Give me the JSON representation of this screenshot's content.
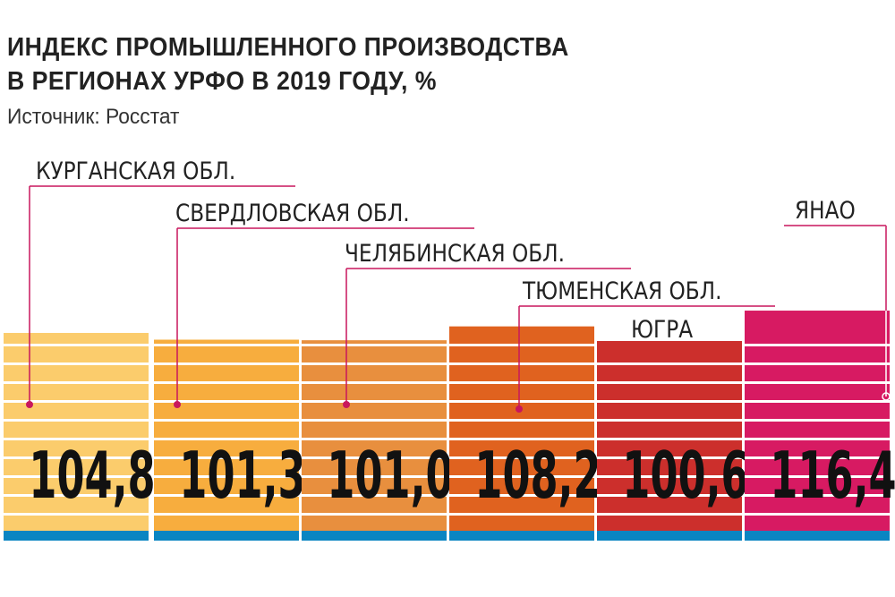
{
  "title_line1": "ИНДЕКС ПРОМЫШЛЕННОГО ПРОИЗВОДСТВА",
  "title_line2": "В РЕГИОНАХ УРФО В 2019 ГОДУ, %",
  "source": "Источник: Росстат",
  "chart_data": {
    "type": "bar",
    "title": "ИНДЕКС ПРОМЫШЛЕННОГО ПРОИЗВОДСТВА В РЕГИОНАХ УРФО В 2019 ГОДУ, %",
    "categories": [
      "КУРГАНСКАЯ ОБЛ.",
      "СВЕРДЛОВСКАЯ ОБЛ.",
      "ЧЕЛЯБИНСКАЯ ОБЛ.",
      "ТЮМЕНСКАЯ ОБЛ.",
      "ЮГРА",
      "ЯНАО"
    ],
    "values": [
      104.8,
      101.3,
      101.0,
      108.2,
      100.6,
      116.4
    ],
    "value_labels": [
      "104,8",
      "101,3",
      "101,0",
      "108,2",
      "100,6",
      "116,4"
    ],
    "colors": [
      "#fbcc6c",
      "#f7ad3e",
      "#e88f3e",
      "#e0621f",
      "#cc2f2c",
      "#d71a62"
    ],
    "base_color": "#0a85c2",
    "leader_color": "#c8175d",
    "xlabel": "",
    "ylabel": "%"
  }
}
